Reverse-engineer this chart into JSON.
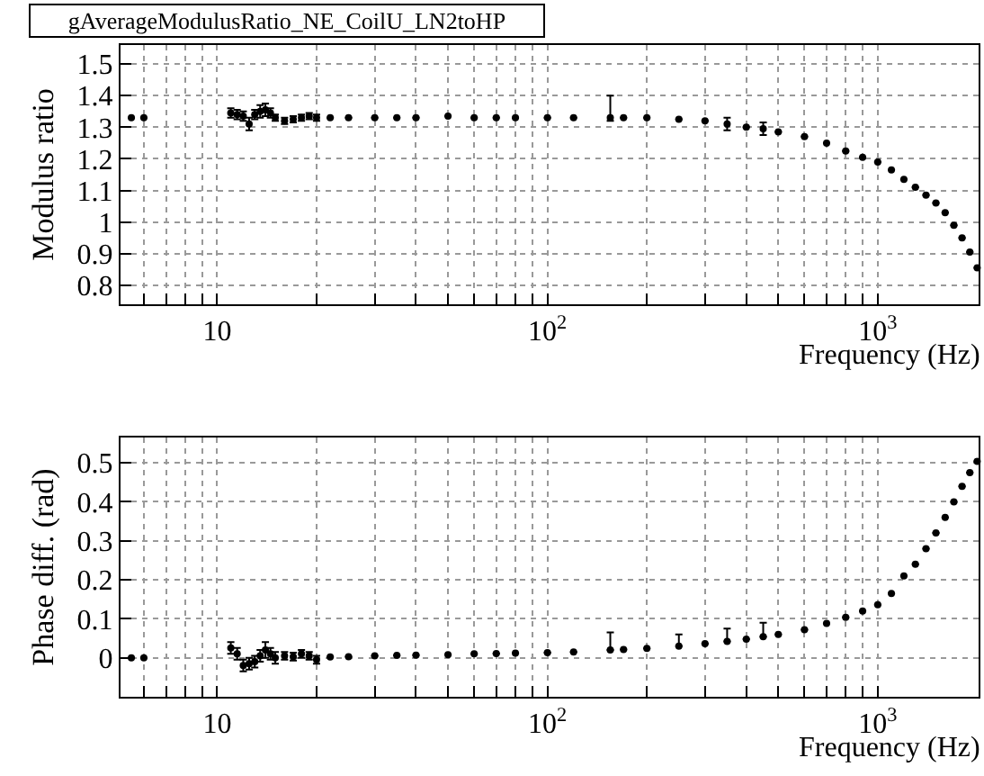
{
  "chart_data": [
    {
      "type": "scatter",
      "title": "gAverageModulusRatio_NE_CoilU_LN2toHP",
      "xlabel": "Frequency (Hz)",
      "ylabel": "Modulus ratio",
      "log": "x",
      "grid": true,
      "marker": "circle",
      "x": [
        5.5,
        6,
        11,
        11.5,
        12,
        12.5,
        13,
        13.5,
        14,
        14.5,
        15,
        16,
        17,
        18,
        19,
        20,
        22,
        25,
        30,
        35,
        40,
        50,
        60,
        70,
        80,
        100,
        120,
        155,
        170,
        200,
        250,
        300,
        350,
        400,
        450,
        500,
        600,
        700,
        800,
        900,
        1000,
        1100,
        1200,
        1300,
        1400,
        1500,
        1600,
        1700,
        1800,
        1900,
        2000
      ],
      "values": [
        1.33,
        1.33,
        1.345,
        1.34,
        1.335,
        1.31,
        1.34,
        1.35,
        1.355,
        1.345,
        1.33,
        1.32,
        1.325,
        1.33,
        1.335,
        1.33,
        1.33,
        1.33,
        1.33,
        1.33,
        1.33,
        1.335,
        1.33,
        1.33,
        1.33,
        1.33,
        1.33,
        1.33,
        1.33,
        1.33,
        1.325,
        1.32,
        1.31,
        1.3,
        1.295,
        1.285,
        1.27,
        1.25,
        1.225,
        1.205,
        1.19,
        1.165,
        1.135,
        1.11,
        1.085,
        1.06,
        1.03,
        0.99,
        0.95,
        0.905,
        0.855
      ],
      "errors": [
        null,
        null,
        0.015,
        0.015,
        0.015,
        0.02,
        0.015,
        0.02,
        0.02,
        0.015,
        0.01,
        0.01,
        0.01,
        0.01,
        0.01,
        0.01,
        null,
        null,
        null,
        null,
        null,
        null,
        null,
        null,
        null,
        null,
        null,
        [
          1.32,
          1.4
        ],
        null,
        null,
        null,
        null,
        0.02,
        null,
        0.02,
        null,
        null,
        null,
        null,
        null,
        null,
        null,
        null,
        null,
        null,
        null,
        null,
        null,
        null,
        null,
        null
      ],
      "color": "#000000",
      "xlim": [
        5.1,
        2020
      ],
      "ylim": [
        0.74,
        1.56
      ],
      "xticks": [
        {
          "value": 6,
          "label": null
        },
        {
          "value": 7,
          "label": null
        },
        {
          "value": 8,
          "label": null
        },
        {
          "value": 9,
          "label": null
        },
        10,
        {
          "value": 20,
          "label": null
        },
        {
          "value": 30,
          "label": null
        },
        {
          "value": 40,
          "label": null
        },
        {
          "value": 50,
          "label": null
        },
        {
          "value": 60,
          "label": null
        },
        {
          "value": 70,
          "label": null
        },
        {
          "value": 80,
          "label": null
        },
        {
          "value": 90,
          "label": null
        },
        {
          "value": 100,
          "label": "10$^{2}$"
        },
        {
          "value": 200,
          "label": null
        },
        {
          "value": 300,
          "label": null
        },
        {
          "value": 400,
          "label": null
        },
        {
          "value": 500,
          "label": null
        },
        {
          "value": 600,
          "label": null
        },
        {
          "value": 700,
          "label": null
        },
        {
          "value": 800,
          "label": null
        },
        {
          "value": 900,
          "label": null
        },
        {
          "value": 1000,
          "label": "10$^{3}$"
        },
        {
          "value": 2000,
          "label": null
        }
      ],
      "yticks": [
        0.8,
        0.9,
        1,
        1.1,
        1.2,
        1.3,
        1.4,
        1.5
      ]
    },
    {
      "type": "scatter",
      "xlabel": "Frequency (Hz)",
      "ylabel": "Phase diff. (rad)",
      "log": "x",
      "grid": true,
      "marker": "circle",
      "x": [
        5.5,
        6,
        11,
        11.5,
        12,
        12.5,
        13,
        13.5,
        14,
        14.5,
        15,
        16,
        17,
        18,
        19,
        20,
        22,
        25,
        30,
        35,
        40,
        50,
        60,
        70,
        80,
        100,
        120,
        155,
        170,
        200,
        250,
        300,
        350,
        400,
        450,
        500,
        600,
        700,
        800,
        900,
        1000,
        1100,
        1200,
        1300,
        1400,
        1500,
        1600,
        1700,
        1800,
        1900,
        2000
      ],
      "values": [
        0,
        0,
        0.025,
        0.01,
        -0.02,
        -0.015,
        -0.01,
        0.005,
        0.02,
        0.01,
        0,
        0.005,
        0.003,
        0.01,
        0.005,
        -0.005,
        0.002,
        0.003,
        0.005,
        0.006,
        0.007,
        0.008,
        0.01,
        0.011,
        0.012,
        0.013,
        0.015,
        0.02,
        0.021,
        0.024,
        0.03,
        0.036,
        0.042,
        0.048,
        0.054,
        0.06,
        0.072,
        0.088,
        0.104,
        0.12,
        0.136,
        0.165,
        0.21,
        0.24,
        0.28,
        0.32,
        0.36,
        0.4,
        0.44,
        0.475,
        0.504
      ],
      "errors": [
        null,
        null,
        0.015,
        0.015,
        0.015,
        0.015,
        0.015,
        0.015,
        0.02,
        0.015,
        0.015,
        0.01,
        0.01,
        0.01,
        0.01,
        0.01,
        null,
        null,
        null,
        null,
        null,
        null,
        null,
        null,
        null,
        null,
        null,
        [
          0.02,
          0.065
        ],
        null,
        null,
        [
          0.03,
          0.06
        ],
        null,
        [
          0.042,
          0.075
        ],
        null,
        [
          0.054,
          0.09
        ],
        null,
        null,
        null,
        null,
        null,
        null,
        null,
        null,
        null,
        null,
        null,
        null,
        null,
        null,
        null,
        null
      ],
      "color": "#000000",
      "xlim": [
        5.1,
        2020
      ],
      "ylim": [
        -0.1,
        0.565
      ],
      "xticks": [
        {
          "value": 6,
          "label": null
        },
        {
          "value": 7,
          "label": null
        },
        {
          "value": 8,
          "label": null
        },
        {
          "value": 9,
          "label": null
        },
        10,
        {
          "value": 20,
          "label": null
        },
        {
          "value": 30,
          "label": null
        },
        {
          "value": 40,
          "label": null
        },
        {
          "value": 50,
          "label": null
        },
        {
          "value": 60,
          "label": null
        },
        {
          "value": 70,
          "label": null
        },
        {
          "value": 80,
          "label": null
        },
        {
          "value": 90,
          "label": null
        },
        {
          "value": 100,
          "label": "10$^{2}$"
        },
        {
          "value": 200,
          "label": null
        },
        {
          "value": 300,
          "label": null
        },
        {
          "value": 400,
          "label": null
        },
        {
          "value": 500,
          "label": null
        },
        {
          "value": 600,
          "label": null
        },
        {
          "value": 700,
          "label": null
        },
        {
          "value": 800,
          "label": null
        },
        {
          "value": 900,
          "label": null
        },
        {
          "value": 1000,
          "label": "10$^{3}$"
        },
        {
          "value": 2000,
          "label": null
        }
      ],
      "yticks": [
        0,
        0.1,
        0.2,
        0.3,
        0.4,
        0.5
      ]
    }
  ]
}
